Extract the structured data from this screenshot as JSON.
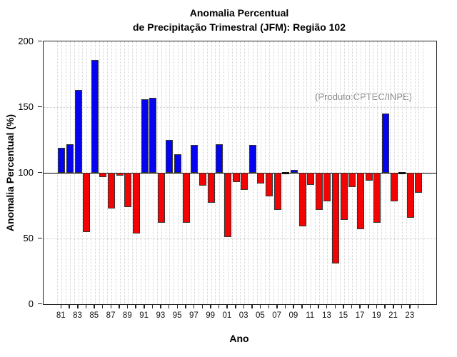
{
  "title_line1": "Anomalia Percentual",
  "title_line2": "de Precipitação Trimestral (JFM): Região 102",
  "annotation": "(Produto:CPTEC/INPE)",
  "chart_data": {
    "type": "bar",
    "title": "Anomalia Percentual de Precipitação Trimestral (JFM): Região 102",
    "xlabel": "Ano",
    "ylabel": "Anomalia Percentual (%)",
    "ylim": [
      0,
      200
    ],
    "baseline": 100,
    "y_ticks": [
      0,
      50,
      100,
      150,
      200
    ],
    "x_tick_labels": [
      "81",
      "83",
      "85",
      "87",
      "89",
      "91",
      "93",
      "95",
      "97",
      "99",
      "01",
      "03",
      "05",
      "07",
      "09",
      "11",
      "13",
      "15",
      "17",
      "19",
      "21",
      "23"
    ],
    "grid": {
      "horizontal_dotted_at": [
        50,
        150
      ],
      "vertical_dotted": "every half-year",
      "solid_line_at": 100
    },
    "legend": "none",
    "bar_rule": "value >= 100 drawn upward in blue from 100; value < 100 drawn downward in red from 100",
    "years": [
      1981,
      1982,
      1983,
      1984,
      1985,
      1986,
      1987,
      1988,
      1989,
      1990,
      1991,
      1992,
      1993,
      1994,
      1995,
      1996,
      1997,
      1998,
      1999,
      2000,
      2001,
      2002,
      2003,
      2004,
      2005,
      2006,
      2007,
      2008,
      2009,
      2010,
      2011,
      2012,
      2013,
      2014,
      2015,
      2016,
      2017,
      2018,
      2019,
      2020,
      2021,
      2022,
      2023,
      2024
    ],
    "values": [
      119,
      122,
      163,
      55,
      186,
      97,
      73,
      98,
      74,
      54,
      156,
      157,
      62,
      125,
      114,
      62,
      121,
      90,
      77,
      122,
      51,
      93,
      87,
      121,
      92,
      82,
      72,
      100,
      102,
      59,
      91,
      72,
      78,
      31,
      64,
      89,
      57,
      94,
      62,
      145,
      78,
      100,
      66,
      85
    ],
    "colors": {
      "above_baseline": "#0404ee",
      "below_baseline": "#f20404",
      "bar_border": "#333333",
      "baseline_line": "#000000",
      "grid": "#c8c8c8",
      "annotation_text": "#858585",
      "text": "#000000"
    }
  }
}
